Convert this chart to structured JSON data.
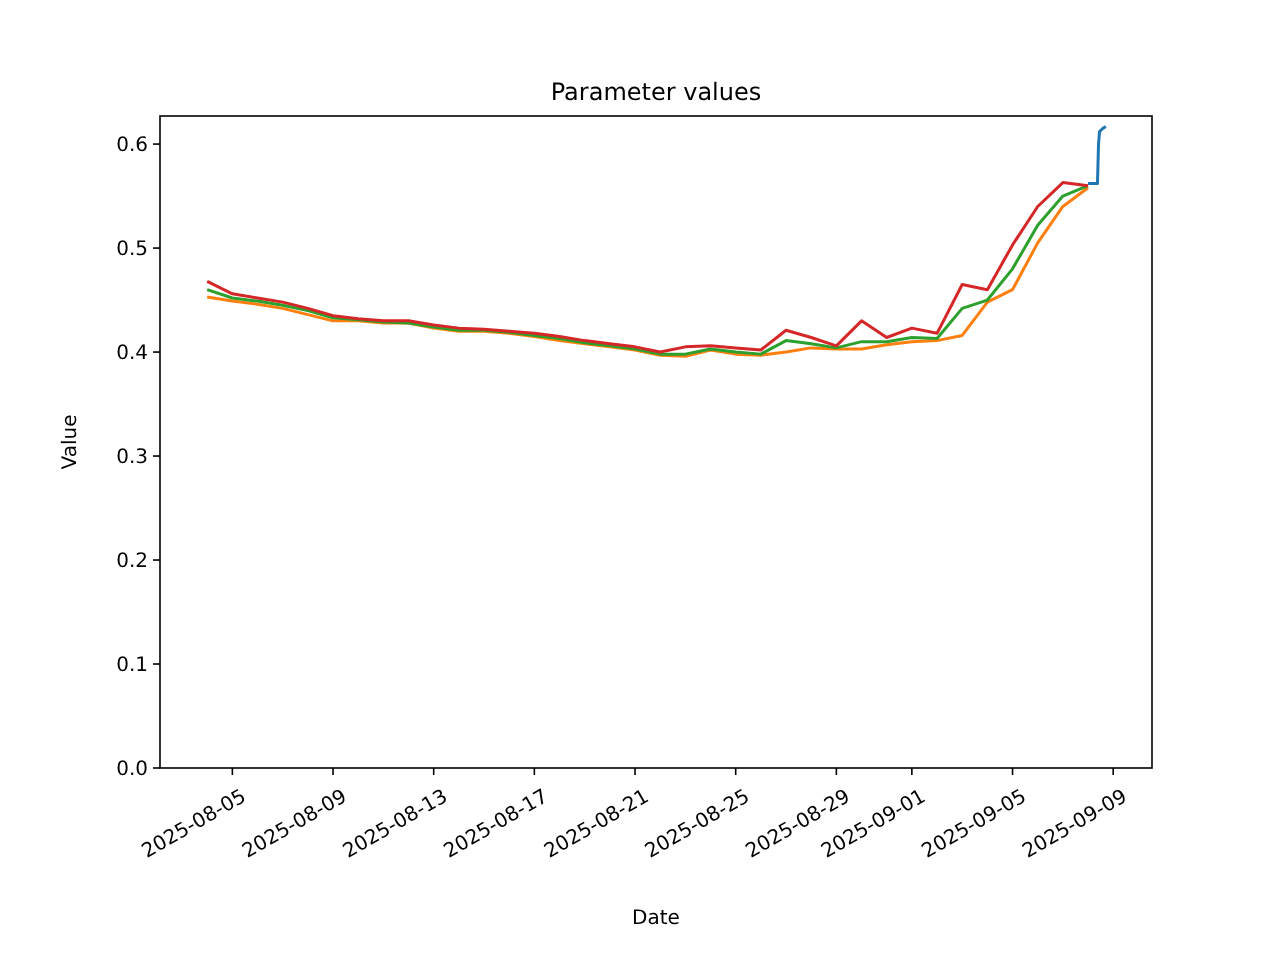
{
  "chart_data": {
    "type": "line",
    "title": "Parameter values",
    "xlabel": "Date",
    "ylabel": "Value",
    "xlim": [
      "2025-08-02T03:00",
      "2025-09-10T13:00"
    ],
    "xticks": [
      "2025-08-05",
      "2025-08-09",
      "2025-08-13",
      "2025-08-17",
      "2025-08-21",
      "2025-08-25",
      "2025-08-29",
      "2025-09-01",
      "2025-09-05",
      "2025-09-09"
    ],
    "ylim": [
      0,
      0.627
    ],
    "yticks": [
      {
        "value": 0,
        "label": "0.0"
      },
      {
        "value": 0.1,
        "label": "0.1"
      },
      {
        "value": 0.2,
        "label": "0.2"
      },
      {
        "value": 0.3,
        "label": "0.3"
      },
      {
        "value": 0.4,
        "label": "0.4"
      },
      {
        "value": 0.5,
        "label": "0.5"
      },
      {
        "value": 0.6,
        "label": "0.6"
      }
    ],
    "grid": false,
    "series": [
      {
        "color": "#1f77b4",
        "x": [
          "2025-09-08T00:00",
          "2025-09-08T09:00",
          "2025-09-08T10:00",
          "2025-09-08T11:00",
          "2025-09-08T14:00",
          "2025-09-08T17:00"
        ],
        "values": [
          0.562,
          0.562,
          0.6,
          0.612,
          0.615,
          0.617
        ]
      },
      {
        "color": "#ff7f0e",
        "values": [
          0.453,
          0.449,
          0.446,
          0.442,
          0.436,
          0.43,
          0.43,
          0.428,
          0.428,
          0.423,
          0.42,
          0.42,
          0.418,
          0.415,
          0.411,
          0.408,
          0.405,
          0.402,
          0.397,
          0.396,
          0.402,
          0.398,
          0.397,
          0.4,
          0.404,
          0.403,
          0.403,
          0.407,
          0.41,
          0.411,
          0.416,
          0.448,
          0.46,
          0.505,
          0.54,
          0.558
        ]
      },
      {
        "color": "#2ca02c",
        "values": [
          0.46,
          0.452,
          0.449,
          0.445,
          0.44,
          0.433,
          0.431,
          0.429,
          0.428,
          0.424,
          0.421,
          0.421,
          0.419,
          0.416,
          0.413,
          0.409,
          0.406,
          0.403,
          0.398,
          0.398,
          0.403,
          0.4,
          0.398,
          0.411,
          0.408,
          0.404,
          0.41,
          0.41,
          0.414,
          0.413,
          0.442,
          0.45,
          0.48,
          0.522,
          0.55,
          0.56
        ]
      },
      {
        "color": "#d62728",
        "values": [
          0.468,
          0.456,
          0.452,
          0.448,
          0.442,
          0.435,
          0.432,
          0.43,
          0.43,
          0.426,
          0.423,
          0.422,
          0.42,
          0.418,
          0.415,
          0.411,
          0.408,
          0.405,
          0.4,
          0.405,
          0.406,
          0.404,
          0.402,
          0.421,
          0.414,
          0.406,
          0.43,
          0.414,
          0.423,
          0.418,
          0.465,
          0.46,
          0.503,
          0.54,
          0.563,
          0.56
        ]
      }
    ],
    "x": [
      "2025-08-04",
      "2025-08-05",
      "2025-08-06",
      "2025-08-07",
      "2025-08-08",
      "2025-08-09",
      "2025-08-10",
      "2025-08-11",
      "2025-08-12",
      "2025-08-13",
      "2025-08-14",
      "2025-08-15",
      "2025-08-16",
      "2025-08-17",
      "2025-08-18",
      "2025-08-19",
      "2025-08-20",
      "2025-08-21",
      "2025-08-22",
      "2025-08-23",
      "2025-08-24",
      "2025-08-25",
      "2025-08-26",
      "2025-08-27",
      "2025-08-28",
      "2025-08-29",
      "2025-08-30",
      "2025-08-31",
      "2025-09-01",
      "2025-09-02",
      "2025-09-03",
      "2025-09-04",
      "2025-09-05",
      "2025-09-06",
      "2025-09-07",
      "2025-09-08"
    ]
  }
}
